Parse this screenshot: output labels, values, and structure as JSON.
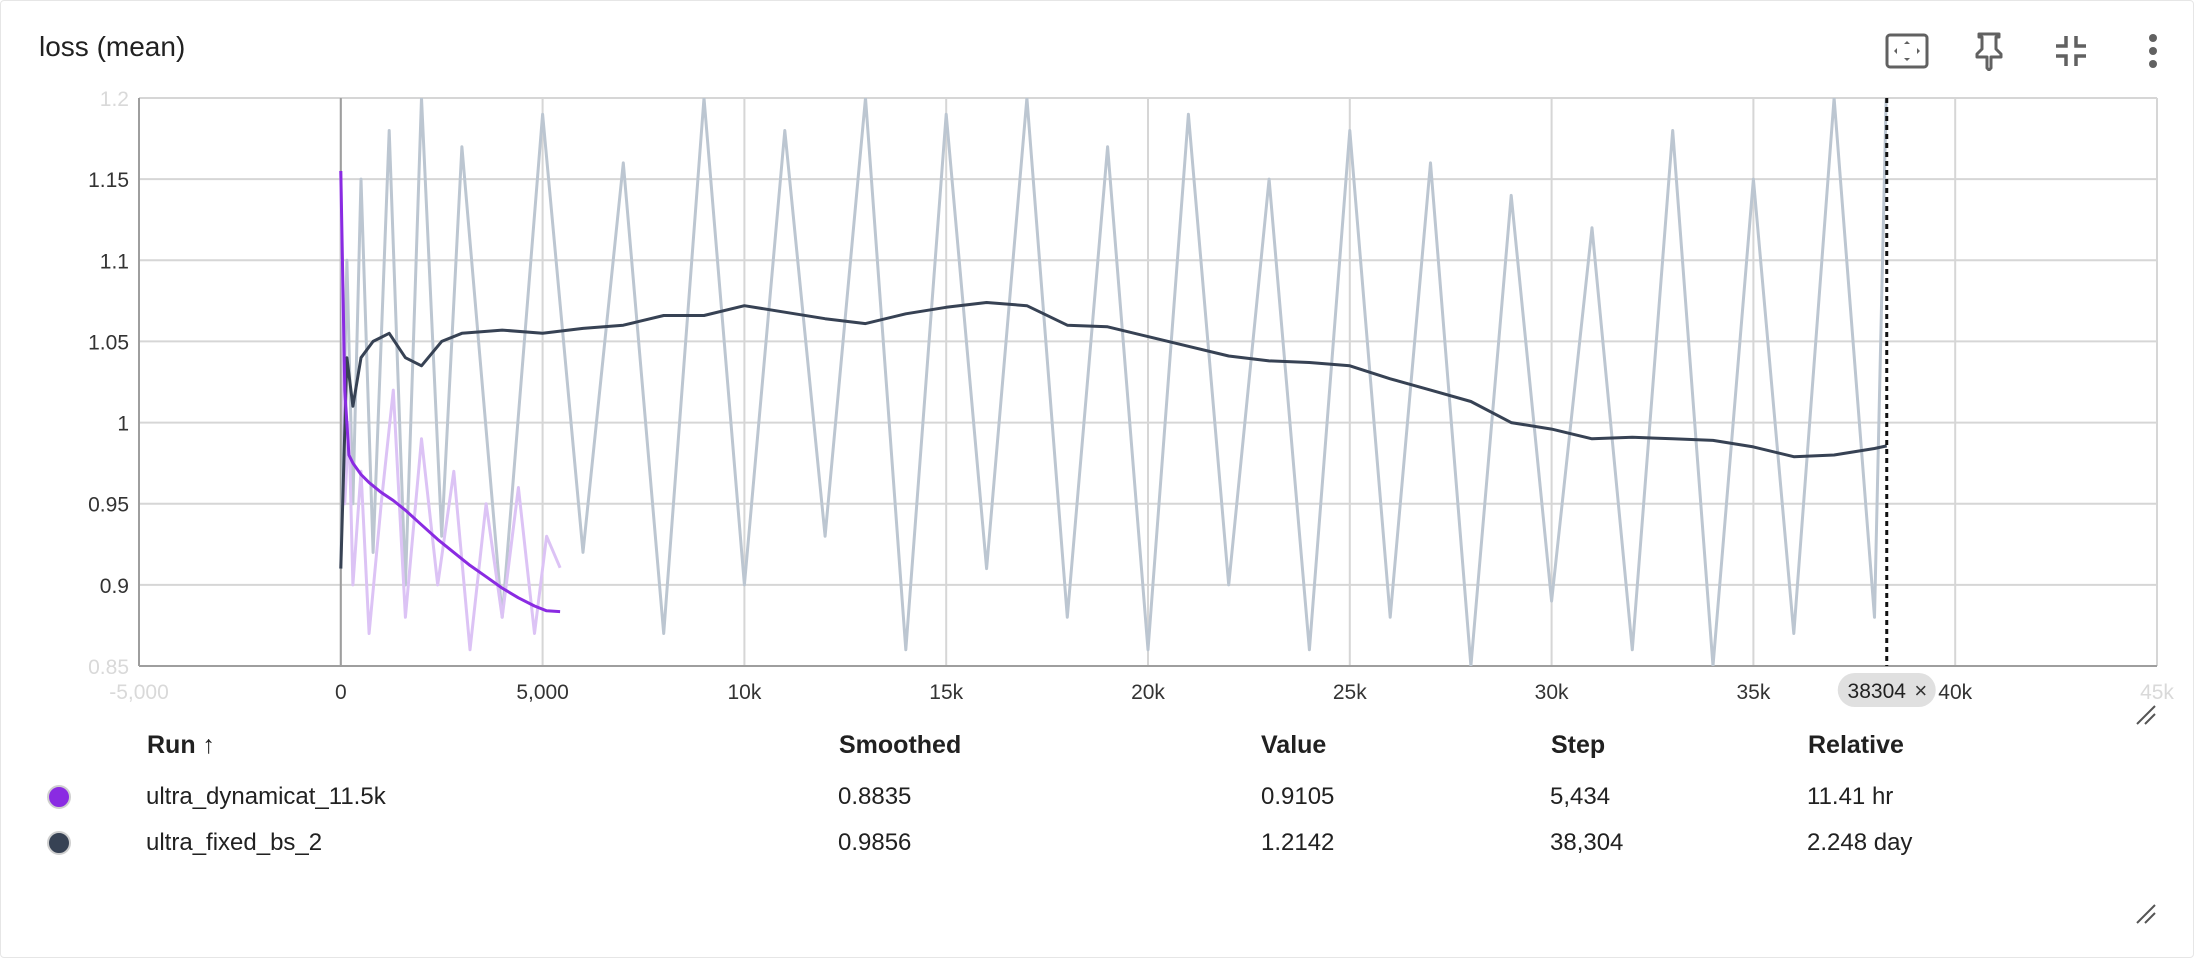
{
  "title": "loss (mean)",
  "toolbar": {
    "icons": [
      "fit-to-data-icon",
      "pin-icon",
      "collapse-icon",
      "more-vert-icon"
    ]
  },
  "table": {
    "headers": {
      "run": "Run ↑",
      "smoothed": "Smoothed",
      "value": "Value",
      "step": "Step",
      "relative": "Relative"
    },
    "rows": [
      {
        "color": "#8a2be2",
        "run": "ultra_dynamicat_11.5k",
        "smoothed": "0.8835",
        "value": "0.9105",
        "step": "5,434",
        "relative": "11.41 hr"
      },
      {
        "color": "#374254",
        "run": "ultra_fixed_bs_2",
        "smoothed": "0.9856",
        "value": "1.2142",
        "step": "38,304",
        "relative": "2.248 day"
      }
    ]
  },
  "chart_data": {
    "type": "line",
    "title": "loss (mean)",
    "xlim": [
      -5000,
      45000
    ],
    "ylim": [
      0.85,
      1.2
    ],
    "x_ticks": [
      -5000,
      0,
      5000,
      10000,
      15000,
      20000,
      25000,
      30000,
      35000,
      40000,
      45000
    ],
    "x_tick_labels": [
      "-5,000",
      "0",
      "5,000",
      "10k",
      "15k",
      "20k",
      "25k",
      "30k",
      "35k",
      "40k",
      "45k"
    ],
    "y_ticks": [
      0.85,
      0.9,
      0.95,
      1,
      1.05,
      1.1,
      1.15,
      1.2
    ],
    "y_tick_labels": [
      "0.85",
      "0.9",
      "0.95",
      "1",
      "1.05",
      "1.1",
      "1.15",
      "1.2"
    ],
    "grid": true,
    "hover_step": 38304,
    "hover_label": "38304",
    "series": [
      {
        "name": "ultra_dynamicat_11.5k",
        "color": "#8a2be2",
        "raw_color": "#dcc3f5",
        "x": [
          0,
          100,
          200,
          300,
          500,
          700,
          1000,
          1300,
          1600,
          2000,
          2400,
          2800,
          3200,
          3600,
          4000,
          4400,
          4800,
          5100,
          5434
        ],
        "smoothed": [
          1.155,
          1.02,
          0.98,
          0.975,
          0.968,
          0.963,
          0.957,
          0.952,
          0.946,
          0.937,
          0.928,
          0.92,
          0.912,
          0.905,
          0.898,
          0.892,
          0.887,
          0.884,
          0.8835
        ],
        "raw": [
          1.155,
          0.95,
          1.0,
          0.9,
          0.97,
          0.87,
          0.95,
          1.02,
          0.88,
          0.99,
          0.9,
          0.97,
          0.86,
          0.95,
          0.88,
          0.96,
          0.87,
          0.93,
          0.9105
        ]
      },
      {
        "name": "ultra_fixed_bs_2",
        "color": "#374254",
        "raw_color": "#bcc6d1",
        "x": [
          0,
          150,
          300,
          500,
          800,
          1200,
          1600,
          2000,
          2500,
          3000,
          4000,
          5000,
          6000,
          7000,
          8000,
          9000,
          10000,
          11000,
          12000,
          13000,
          14000,
          15000,
          16000,
          17000,
          18000,
          19000,
          20000,
          21000,
          22000,
          23000,
          24000,
          25000,
          26000,
          27000,
          28000,
          29000,
          30000,
          31000,
          32000,
          33000,
          34000,
          35000,
          36000,
          37000,
          38000,
          38304
        ],
        "smoothed": [
          0.91,
          1.04,
          1.01,
          1.04,
          1.05,
          1.055,
          1.04,
          1.035,
          1.05,
          1.055,
          1.057,
          1.055,
          1.058,
          1.06,
          1.066,
          1.066,
          1.072,
          1.068,
          1.064,
          1.061,
          1.067,
          1.071,
          1.074,
          1.072,
          1.06,
          1.059,
          1.053,
          1.047,
          1.041,
          1.038,
          1.037,
          1.035,
          1.027,
          1.02,
          1.013,
          1.0,
          0.996,
          0.99,
          0.991,
          0.99,
          0.989,
          0.985,
          0.979,
          0.98,
          0.984,
          0.9856
        ],
        "raw": [
          0.91,
          1.1,
          0.95,
          1.15,
          0.92,
          1.18,
          0.9,
          1.2,
          0.93,
          1.17,
          0.88,
          1.19,
          0.92,
          1.16,
          0.87,
          1.2,
          0.9,
          1.18,
          0.93,
          1.2,
          0.86,
          1.19,
          0.91,
          1.2,
          0.88,
          1.17,
          0.86,
          1.19,
          0.9,
          1.15,
          0.86,
          1.18,
          0.88,
          1.16,
          0.85,
          1.14,
          0.89,
          1.12,
          0.86,
          1.18,
          0.85,
          1.15,
          0.87,
          1.2,
          0.88,
          1.2142
        ]
      }
    ]
  }
}
